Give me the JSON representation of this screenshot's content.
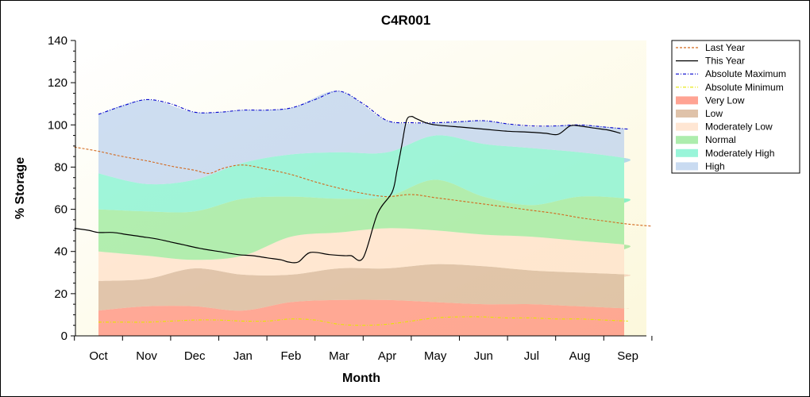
{
  "chart_data": {
    "type": "area",
    "title": "C4R001",
    "xlabel": "Month",
    "ylabel": "% Storage",
    "ylim": [
      0,
      140
    ],
    "yticks": [
      0,
      20,
      40,
      60,
      80,
      100,
      120,
      140
    ],
    "categories": [
      "Oct",
      "Nov",
      "Dec",
      "Jan",
      "Feb",
      "Mar",
      "Apr",
      "May",
      "Jun",
      "Jul",
      "Aug",
      "Sep"
    ],
    "legend_position": "right",
    "bands": [
      {
        "name": "Very Low",
        "color": "#ff8c78",
        "lower": [
          0,
          0,
          0,
          0,
          0,
          0,
          0,
          0,
          0,
          0,
          0,
          0,
          0
        ],
        "upper": [
          12,
          14,
          14,
          12,
          16,
          17,
          17,
          16,
          15,
          15,
          14,
          13,
          13
        ]
      },
      {
        "name": "Low",
        "color": "#d7b394",
        "lower": [
          12,
          14,
          14,
          12,
          16,
          17,
          17,
          16,
          15,
          15,
          14,
          13,
          13
        ],
        "upper": [
          26,
          27,
          32,
          29,
          29,
          32,
          32,
          34,
          33,
          31,
          30,
          29,
          28
        ]
      },
      {
        "name": "Moderately Low",
        "color": "#ffe0c8",
        "lower": [
          26,
          27,
          32,
          29,
          29,
          32,
          32,
          34,
          33,
          31,
          30,
          29,
          28
        ],
        "upper": [
          40,
          38,
          36,
          38,
          47,
          49,
          51,
          50,
          48,
          47,
          45,
          43,
          41
        ]
      },
      {
        "name": "Normal",
        "color": "#98e898",
        "lower": [
          40,
          38,
          36,
          38,
          47,
          49,
          51,
          50,
          48,
          47,
          45,
          43,
          41
        ],
        "upper": [
          60,
          59,
          59,
          65,
          66,
          65,
          66,
          74,
          66,
          62,
          66,
          65,
          63
        ]
      },
      {
        "name": "Moderately High",
        "color": "#7ff2cf",
        "lower": [
          60,
          59,
          59,
          65,
          66,
          65,
          66,
          74,
          66,
          62,
          66,
          65,
          63
        ],
        "upper": [
          77,
          72,
          74,
          82,
          86,
          87,
          87,
          95,
          91,
          89,
          87,
          84,
          82
        ]
      },
      {
        "name": "High",
        "color": "#bcd2ee",
        "lower": [
          77,
          72,
          74,
          82,
          86,
          87,
          87,
          95,
          91,
          89,
          87,
          84,
          82
        ],
        "upper": [
          105,
          112,
          106,
          107,
          108,
          116,
          102,
          101,
          102,
          99,
          100,
          98,
          98
        ]
      }
    ],
    "band_x": [
      0,
      1,
      2,
      3,
      4,
      5,
      6,
      7,
      8,
      9,
      10,
      11,
      11
    ],
    "series": [
      {
        "name": "Last Year",
        "color": "#d2691e",
        "style": "dashed",
        "x": [
          -0.5,
          0,
          0.5,
          1,
          1.5,
          2,
          2.3,
          2.6,
          3,
          3.5,
          4,
          4.5,
          5,
          5.5,
          6,
          6.5,
          7,
          7.5,
          8,
          8.5,
          9,
          9.5,
          10,
          10.5,
          11,
          11.5
        ],
        "y": [
          89.5,
          87.5,
          85,
          83,
          80.5,
          78.5,
          77,
          79.5,
          81,
          79,
          76.5,
          73,
          70,
          67.5,
          66,
          67,
          65.5,
          64,
          62.5,
          61,
          59.5,
          58,
          56,
          54.5,
          53,
          52
        ]
      },
      {
        "name": "This Year",
        "color": "#000000",
        "style": "solid",
        "x": [
          -0.5,
          -0.2,
          0,
          0.3,
          0.6,
          0.9,
          1.2,
          1.5,
          1.8,
          2.1,
          2.5,
          2.9,
          3.2,
          3.5,
          3.8,
          3.95,
          4.15,
          4.4,
          4.8,
          5.1,
          5.25,
          5.5,
          5.8,
          6.1,
          6.2,
          6.3,
          6.4,
          6.5,
          6.6,
          6.8,
          7,
          7.5,
          8,
          8.5,
          9,
          9.3,
          9.55,
          9.8,
          10,
          10.3,
          10.6,
          10.85
        ],
        "y": [
          51,
          50,
          49,
          49,
          48,
          47,
          46,
          44.5,
          43,
          41.5,
          40,
          38.5,
          38,
          37,
          36,
          35,
          35,
          39.5,
          38.5,
          38,
          38,
          37,
          58,
          68,
          78,
          90,
          102,
          104,
          103,
          101,
          100,
          99,
          98,
          97,
          96.5,
          96,
          95.5,
          99.5,
          99.5,
          98.5,
          97.5,
          96
        ]
      },
      {
        "name": "Absolute Maximum",
        "color": "#0000cd",
        "style": "dashdot",
        "x": [
          0,
          0.5,
          1,
          1.5,
          2,
          2.5,
          3,
          3.5,
          4,
          4.5,
          5,
          5.5,
          6,
          6.5,
          7,
          7.5,
          8,
          8.5,
          9,
          9.5,
          10,
          10.5,
          11
        ],
        "y": [
          105,
          109,
          112,
          110,
          106,
          106,
          107,
          107,
          108,
          112,
          116,
          110,
          102,
          101,
          101,
          101.5,
          102,
          100.5,
          99.5,
          99.5,
          100,
          99,
          98
        ]
      },
      {
        "name": "Absolute Minimum",
        "color": "#e6e600",
        "style": "dashdot",
        "x": [
          0,
          0.5,
          1,
          1.5,
          2,
          2.5,
          3,
          3.5,
          4,
          4.5,
          5,
          5.5,
          6,
          6.5,
          7,
          7.5,
          8,
          8.5,
          9,
          9.5,
          10,
          10.5,
          11
        ],
        "y": [
          6.5,
          6.5,
          6.5,
          7,
          7.5,
          7.5,
          7,
          7,
          8,
          7.5,
          5.5,
          5,
          5.5,
          7,
          8.5,
          9,
          9,
          8.5,
          8.5,
          8,
          8,
          7.5,
          7
        ]
      }
    ],
    "legend": [
      "Last Year",
      "This Year",
      "Absolute Maximum",
      "Absolute Minimum",
      "Very Low",
      "Low",
      "Moderately Low",
      "Normal",
      "Moderately High",
      "High"
    ]
  }
}
